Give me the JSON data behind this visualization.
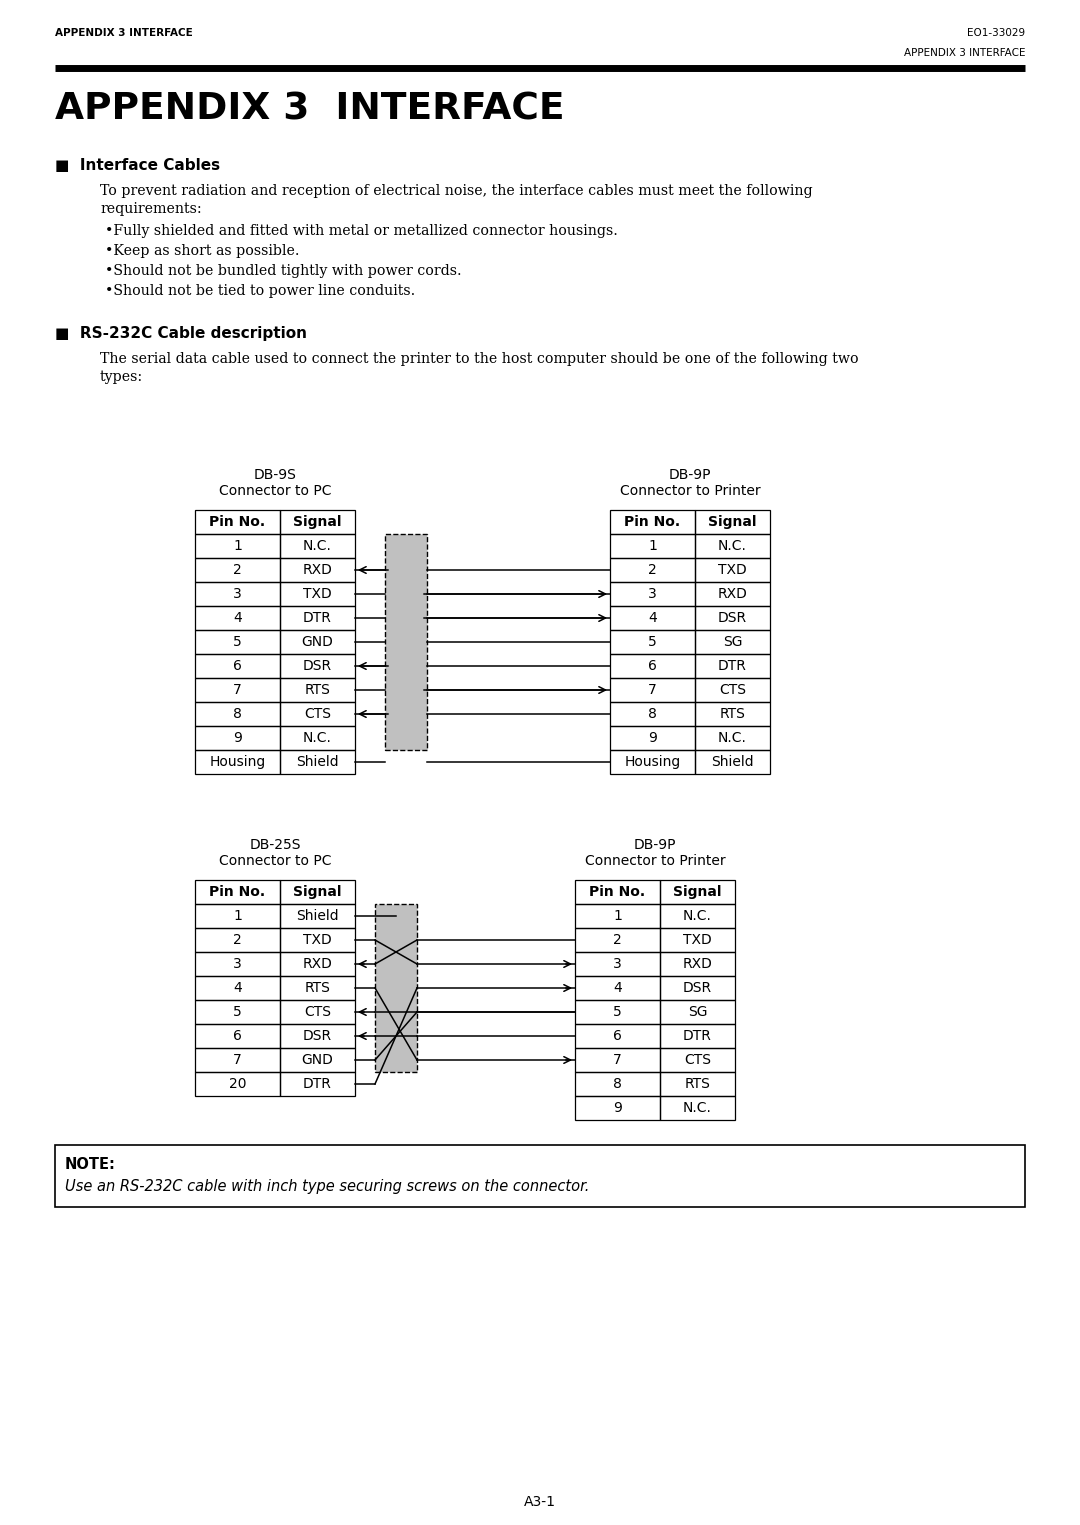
{
  "page_header_left": "APPENDIX 3 INTERFACE",
  "page_header_right": "EO1-33029",
  "page_header_right2": "APPENDIX 3 INTERFACE",
  "main_title": "APPENDIX 3  INTERFACE",
  "section1_title": "Interface Cables",
  "section1_body_line1": "To prevent radiation and reception of electrical noise, the interface cables must meet the following",
  "section1_body_line2": "requirements:",
  "section1_bullets": [
    "Fully shielded and fitted with metal or metallized connector housings.",
    "Keep as short as possible.",
    "Should not be bundled tightly with power cords.",
    "Should not be tied to power line conduits."
  ],
  "section2_title": "RS-232C Cable description",
  "section2_body_line1": "The serial data cable used to connect the printer to the host computer should be one of the following two",
  "section2_body_line2": "types:",
  "diag1_left_title": "DB-9S",
  "diag1_left_sub": "Connector to PC",
  "diag1_left_headers": [
    "Pin No.",
    "Signal"
  ],
  "diag1_left_rows": [
    [
      "1",
      "N.C."
    ],
    [
      "2",
      "RXD"
    ],
    [
      "3",
      "TXD"
    ],
    [
      "4",
      "DTR"
    ],
    [
      "5",
      "GND"
    ],
    [
      "6",
      "DSR"
    ],
    [
      "7",
      "RTS"
    ],
    [
      "8",
      "CTS"
    ],
    [
      "9",
      "N.C."
    ],
    [
      "Housing",
      "Shield"
    ]
  ],
  "diag1_right_title": "DB-9P",
  "diag1_right_sub": "Connector to Printer",
  "diag1_right_headers": [
    "Pin No.",
    "Signal"
  ],
  "diag1_right_rows": [
    [
      "1",
      "N.C."
    ],
    [
      "2",
      "TXD"
    ],
    [
      "3",
      "RXD"
    ],
    [
      "4",
      "DSR"
    ],
    [
      "5",
      "SG"
    ],
    [
      "6",
      "DTR"
    ],
    [
      "7",
      "CTS"
    ],
    [
      "8",
      "RTS"
    ],
    [
      "9",
      "N.C."
    ],
    [
      "Housing",
      "Shield"
    ]
  ],
  "diag1_connections": [
    [
      2,
      2,
      "left"
    ],
    [
      3,
      3,
      "right"
    ],
    [
      4,
      4,
      "right"
    ],
    [
      5,
      5,
      "none"
    ],
    [
      6,
      6,
      "left"
    ],
    [
      7,
      7,
      "right"
    ],
    [
      8,
      8,
      "left"
    ],
    [
      10,
      10,
      "none"
    ]
  ],
  "diag2_left_title": "DB-25S",
  "diag2_left_sub": "Connector to PC",
  "diag2_left_headers": [
    "Pin No.",
    "Signal"
  ],
  "diag2_left_rows": [
    [
      "1",
      "Shield"
    ],
    [
      "2",
      "TXD"
    ],
    [
      "3",
      "RXD"
    ],
    [
      "4",
      "RTS"
    ],
    [
      "5",
      "CTS"
    ],
    [
      "6",
      "DSR"
    ],
    [
      "7",
      "GND"
    ],
    [
      "20",
      "DTR"
    ]
  ],
  "diag2_right_title": "DB-9P",
  "diag2_right_sub": "Connector to Printer",
  "diag2_right_headers": [
    "Pin No.",
    "Signal"
  ],
  "diag2_right_rows": [
    [
      "1",
      "N.C."
    ],
    [
      "2",
      "TXD"
    ],
    [
      "3",
      "RXD"
    ],
    [
      "4",
      "DSR"
    ],
    [
      "5",
      "SG"
    ],
    [
      "6",
      "DTR"
    ],
    [
      "7",
      "CTS"
    ],
    [
      "8",
      "RTS"
    ],
    [
      "9",
      "N.C."
    ]
  ],
  "diag2_connections": [
    [
      1,
      1,
      "right_line"
    ],
    [
      2,
      3,
      "right"
    ],
    [
      3,
      2,
      "left"
    ],
    [
      4,
      7,
      "right"
    ],
    [
      5,
      5,
      "left"
    ],
    [
      6,
      6,
      "left"
    ],
    [
      7,
      5,
      "right_line"
    ],
    [
      8,
      4,
      "right"
    ]
  ],
  "note_label": "NOTE:",
  "note_text": "Use an RS-232C cable with inch type securing screws on the connector.",
  "page_number": "A3-1"
}
